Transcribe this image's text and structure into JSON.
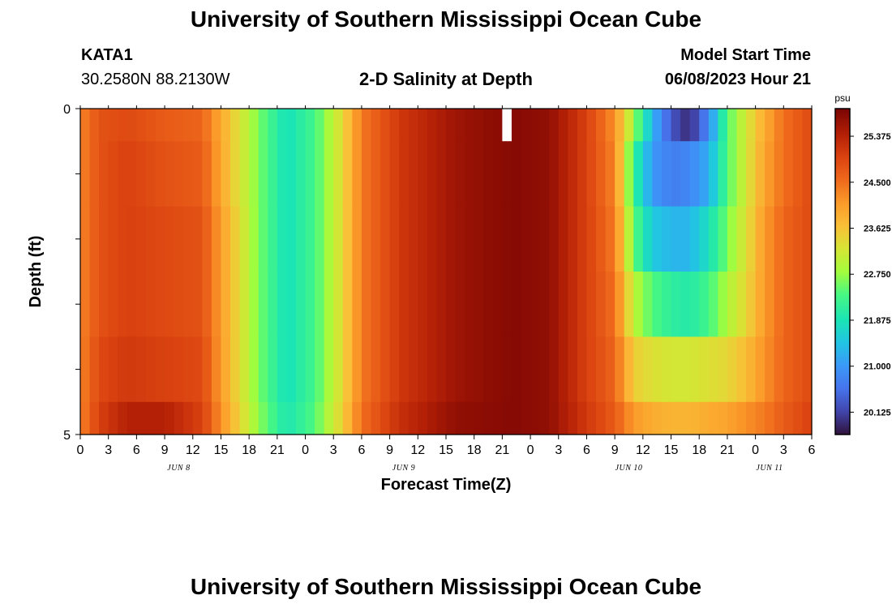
{
  "header": {
    "title": "University of Southern Mississippi Ocean Cube",
    "station": "KATA1",
    "coords": "30.2580N  88.2130W",
    "chart_title": "2-D Salinity at Depth",
    "model_label": "Model Start Time",
    "model_time": "06/08/2023 Hour 21"
  },
  "footer": {
    "title": "University of Southern Mississippi Ocean Cube"
  },
  "chart_data": {
    "type": "heatmap",
    "xlabel": "Forecast Time(Z)",
    "ylabel": "Depth (ft)",
    "colorbar_unit": "psu",
    "x_range_hours": [
      0,
      78
    ],
    "y_range_ft": [
      0,
      5
    ],
    "y_ticks": [
      "0",
      "5"
    ],
    "x_tick_labels": [
      "0",
      "3",
      "6",
      "9",
      "12",
      "15",
      "18",
      "21",
      "0",
      "3",
      "6",
      "9",
      "12",
      "15",
      "18",
      "21",
      "0",
      "3",
      "6",
      "9",
      "12",
      "15",
      "18",
      "21",
      "0",
      "3",
      "6"
    ],
    "day_labels": [
      {
        "label": "JUN 8",
        "hour": 10.5
      },
      {
        "label": "JUN 9",
        "hour": 34.5
      },
      {
        "label": "JUN 10",
        "hour": 58.5
      },
      {
        "label": "JUN 11",
        "hour": 73.5
      }
    ],
    "colorbar_ticks": [
      "25.375",
      "24.500",
      "23.625",
      "22.750",
      "21.875",
      "21.000",
      "20.125"
    ],
    "colorbar_values": [
      25.375,
      24.5,
      23.625,
      22.75,
      21.875,
      21.0,
      20.125
    ],
    "colorbar_range": [
      19.7,
      25.9
    ],
    "depth_layers_ft": [
      0,
      0.5,
      1.5,
      2.5,
      3.5,
      4.5,
      5
    ],
    "keyframes": [
      {
        "hour": 0,
        "values": [
          24.3,
          24.3,
          24.3,
          24.3,
          24.3,
          24.3
        ]
      },
      {
        "hour": 2,
        "values": [
          24.8,
          24.8,
          24.8,
          24.8,
          24.9,
          25.0
        ]
      },
      {
        "hour": 5,
        "values": [
          24.9,
          25.0,
          25.0,
          25.0,
          25.1,
          25.4
        ]
      },
      {
        "hour": 9,
        "values": [
          24.7,
          24.8,
          24.9,
          24.9,
          25.0,
          25.4
        ]
      },
      {
        "hour": 13,
        "values": [
          24.6,
          24.7,
          24.8,
          24.8,
          24.9,
          25.0
        ]
      },
      {
        "hour": 16,
        "values": [
          23.6,
          23.6,
          23.7,
          23.7,
          23.7,
          23.8
        ]
      },
      {
        "hour": 19,
        "values": [
          22.6,
          22.6,
          22.6,
          22.6,
          22.6,
          22.7
        ]
      },
      {
        "hour": 22,
        "values": [
          21.8,
          21.8,
          21.8,
          21.8,
          21.8,
          21.9
        ]
      },
      {
        "hour": 25,
        "values": [
          22.3,
          22.3,
          22.3,
          22.3,
          22.3,
          22.4
        ]
      },
      {
        "hour": 28,
        "values": [
          23.4,
          23.4,
          23.4,
          23.4,
          23.4,
          23.5
        ]
      },
      {
        "hour": 30,
        "values": [
          24.4,
          24.4,
          24.4,
          24.4,
          24.4,
          24.5
        ]
      },
      {
        "hour": 34,
        "values": [
          25.1,
          25.1,
          25.1,
          25.1,
          25.1,
          25.2
        ]
      },
      {
        "hour": 40,
        "values": [
          25.6,
          25.6,
          25.6,
          25.6,
          25.6,
          25.7
        ]
      },
      {
        "hour": 46,
        "values": [
          25.8,
          25.8,
          25.8,
          25.8,
          25.8,
          25.8
        ]
      },
      {
        "hour": 50,
        "values": [
          25.7,
          25.7,
          25.7,
          25.7,
          25.7,
          25.7
        ]
      },
      {
        "hour": 54,
        "values": [
          25.0,
          25.0,
          25.0,
          25.0,
          25.0,
          25.1
        ]
      },
      {
        "hour": 57,
        "values": [
          24.2,
          24.3,
          24.4,
          24.5,
          24.6,
          24.7
        ]
      },
      {
        "hour": 59,
        "values": [
          22.8,
          22.2,
          22.5,
          23.0,
          23.5,
          24.1
        ]
      },
      {
        "hour": 61,
        "values": [
          21.3,
          21.0,
          21.5,
          22.4,
          23.3,
          23.9
        ]
      },
      {
        "hour": 63,
        "values": [
          20.3,
          20.7,
          21.3,
          22.1,
          23.2,
          23.8
        ]
      },
      {
        "hour": 65,
        "values": [
          19.9,
          20.8,
          21.3,
          22.0,
          23.2,
          23.8
        ]
      },
      {
        "hour": 67,
        "values": [
          20.8,
          21.2,
          21.8,
          22.3,
          23.3,
          23.9
        ]
      },
      {
        "hour": 69,
        "values": [
          22.4,
          22.4,
          22.6,
          22.9,
          23.4,
          24.0
        ]
      },
      {
        "hour": 71,
        "values": [
          23.2,
          23.2,
          23.3,
          23.4,
          23.7,
          24.2
        ]
      },
      {
        "hour": 73,
        "values": [
          23.9,
          24.0,
          24.1,
          24.1,
          24.2,
          24.4
        ]
      },
      {
        "hour": 75,
        "values": [
          24.5,
          24.5,
          24.6,
          24.6,
          24.6,
          24.7
        ]
      },
      {
        "hour": 78,
        "values": [
          24.9,
          24.9,
          24.9,
          24.9,
          24.9,
          25.0
        ]
      }
    ],
    "missing_cells": [
      {
        "hour": 45.5,
        "depth_ft": 0.25
      }
    ]
  }
}
